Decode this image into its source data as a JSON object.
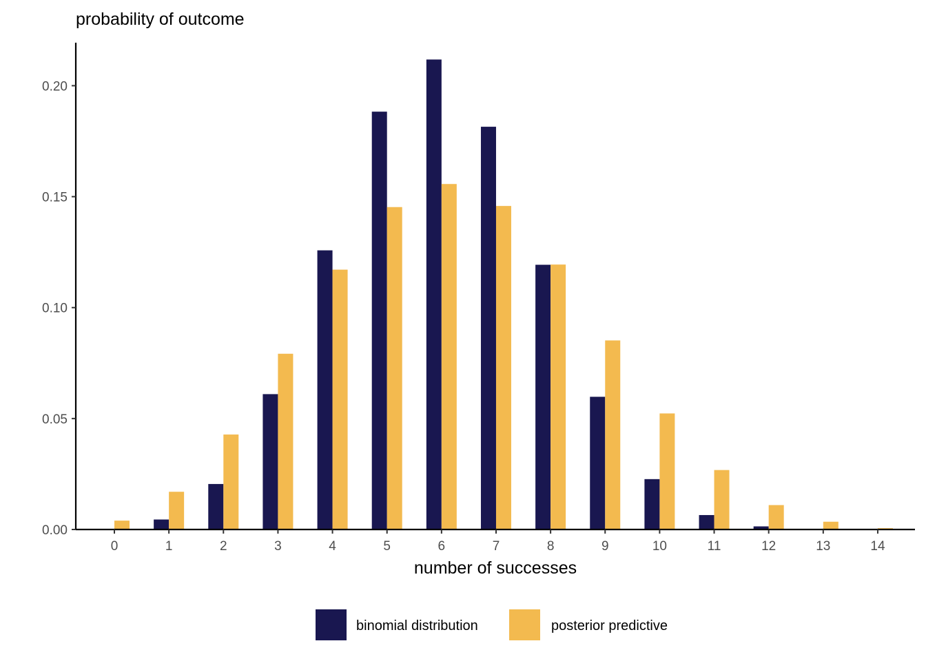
{
  "chart_data": {
    "type": "bar",
    "ylabel": "probability of outcome",
    "xlabel": "number of successes",
    "categories": [
      "0",
      "1",
      "2",
      "3",
      "4",
      "5",
      "6",
      "7",
      "8",
      "9",
      "10",
      "11",
      "12",
      "13",
      "14"
    ],
    "series": [
      {
        "name": "binomial distribution",
        "color": "#191750",
        "values": [
          0.0002,
          0.0045,
          0.0205,
          0.061,
          0.1258,
          0.1883,
          0.2118,
          0.1815,
          0.1193,
          0.0598,
          0.0227,
          0.0065,
          0.0014,
          0.0003,
          0.0001
        ]
      },
      {
        "name": "posterior predictive",
        "color": "#F3BA4F",
        "values": [
          0.004,
          0.017,
          0.0428,
          0.0792,
          0.1171,
          0.1453,
          0.1557,
          0.1458,
          0.1194,
          0.0852,
          0.0523,
          0.0268,
          0.011,
          0.0035,
          0.0006
        ]
      }
    ],
    "ylim": [
      0,
      0.22
    ],
    "yticks": [
      "0.00",
      "0.05",
      "0.10",
      "0.15",
      "0.20"
    ],
    "grid": false,
    "legend_position": "bottom"
  }
}
